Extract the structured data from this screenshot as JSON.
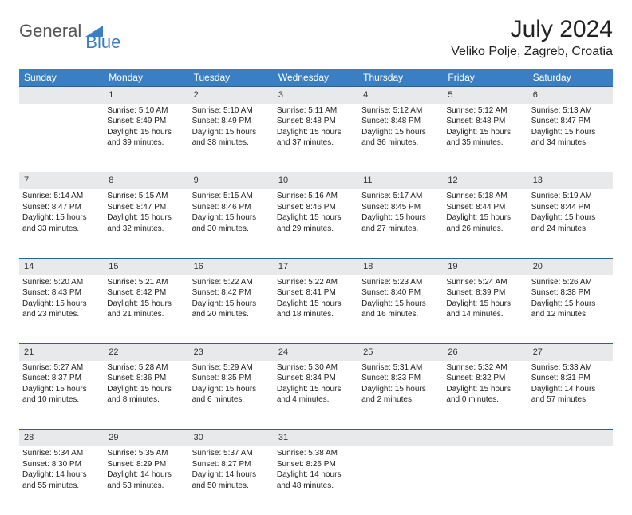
{
  "logo": {
    "word1": "General",
    "word2": "Blue",
    "color_general": "#555555",
    "color_blue": "#3a7fc4"
  },
  "title": {
    "month_year": "July 2024",
    "location": "Veliko Polje, Zagreb, Croatia"
  },
  "colors": {
    "header_bg": "#3a7fc4",
    "header_text": "#ffffff",
    "daynum_bg": "#e7e9eb",
    "rule": "#2b5f95",
    "text": "#222222"
  },
  "day_headers": [
    "Sunday",
    "Monday",
    "Tuesday",
    "Wednesday",
    "Thursday",
    "Friday",
    "Saturday"
  ],
  "weeks": [
    {
      "nums": [
        "",
        "1",
        "2",
        "3",
        "4",
        "5",
        "6"
      ],
      "cells": [
        [],
        [
          "Sunrise: 5:10 AM",
          "Sunset: 8:49 PM",
          "Daylight: 15 hours",
          "and 39 minutes."
        ],
        [
          "Sunrise: 5:10 AM",
          "Sunset: 8:49 PM",
          "Daylight: 15 hours",
          "and 38 minutes."
        ],
        [
          "Sunrise: 5:11 AM",
          "Sunset: 8:48 PM",
          "Daylight: 15 hours",
          "and 37 minutes."
        ],
        [
          "Sunrise: 5:12 AM",
          "Sunset: 8:48 PM",
          "Daylight: 15 hours",
          "and 36 minutes."
        ],
        [
          "Sunrise: 5:12 AM",
          "Sunset: 8:48 PM",
          "Daylight: 15 hours",
          "and 35 minutes."
        ],
        [
          "Sunrise: 5:13 AM",
          "Sunset: 8:47 PM",
          "Daylight: 15 hours",
          "and 34 minutes."
        ]
      ]
    },
    {
      "nums": [
        "7",
        "8",
        "9",
        "10",
        "11",
        "12",
        "13"
      ],
      "cells": [
        [
          "Sunrise: 5:14 AM",
          "Sunset: 8:47 PM",
          "Daylight: 15 hours",
          "and 33 minutes."
        ],
        [
          "Sunrise: 5:15 AM",
          "Sunset: 8:47 PM",
          "Daylight: 15 hours",
          "and 32 minutes."
        ],
        [
          "Sunrise: 5:15 AM",
          "Sunset: 8:46 PM",
          "Daylight: 15 hours",
          "and 30 minutes."
        ],
        [
          "Sunrise: 5:16 AM",
          "Sunset: 8:46 PM",
          "Daylight: 15 hours",
          "and 29 minutes."
        ],
        [
          "Sunrise: 5:17 AM",
          "Sunset: 8:45 PM",
          "Daylight: 15 hours",
          "and 27 minutes."
        ],
        [
          "Sunrise: 5:18 AM",
          "Sunset: 8:44 PM",
          "Daylight: 15 hours",
          "and 26 minutes."
        ],
        [
          "Sunrise: 5:19 AM",
          "Sunset: 8:44 PM",
          "Daylight: 15 hours",
          "and 24 minutes."
        ]
      ]
    },
    {
      "nums": [
        "14",
        "15",
        "16",
        "17",
        "18",
        "19",
        "20"
      ],
      "cells": [
        [
          "Sunrise: 5:20 AM",
          "Sunset: 8:43 PM",
          "Daylight: 15 hours",
          "and 23 minutes."
        ],
        [
          "Sunrise: 5:21 AM",
          "Sunset: 8:42 PM",
          "Daylight: 15 hours",
          "and 21 minutes."
        ],
        [
          "Sunrise: 5:22 AM",
          "Sunset: 8:42 PM",
          "Daylight: 15 hours",
          "and 20 minutes."
        ],
        [
          "Sunrise: 5:22 AM",
          "Sunset: 8:41 PM",
          "Daylight: 15 hours",
          "and 18 minutes."
        ],
        [
          "Sunrise: 5:23 AM",
          "Sunset: 8:40 PM",
          "Daylight: 15 hours",
          "and 16 minutes."
        ],
        [
          "Sunrise: 5:24 AM",
          "Sunset: 8:39 PM",
          "Daylight: 15 hours",
          "and 14 minutes."
        ],
        [
          "Sunrise: 5:26 AM",
          "Sunset: 8:38 PM",
          "Daylight: 15 hours",
          "and 12 minutes."
        ]
      ]
    },
    {
      "nums": [
        "21",
        "22",
        "23",
        "24",
        "25",
        "26",
        "27"
      ],
      "cells": [
        [
          "Sunrise: 5:27 AM",
          "Sunset: 8:37 PM",
          "Daylight: 15 hours",
          "and 10 minutes."
        ],
        [
          "Sunrise: 5:28 AM",
          "Sunset: 8:36 PM",
          "Daylight: 15 hours",
          "and 8 minutes."
        ],
        [
          "Sunrise: 5:29 AM",
          "Sunset: 8:35 PM",
          "Daylight: 15 hours",
          "and 6 minutes."
        ],
        [
          "Sunrise: 5:30 AM",
          "Sunset: 8:34 PM",
          "Daylight: 15 hours",
          "and 4 minutes."
        ],
        [
          "Sunrise: 5:31 AM",
          "Sunset: 8:33 PM",
          "Daylight: 15 hours",
          "and 2 minutes."
        ],
        [
          "Sunrise: 5:32 AM",
          "Sunset: 8:32 PM",
          "Daylight: 15 hours",
          "and 0 minutes."
        ],
        [
          "Sunrise: 5:33 AM",
          "Sunset: 8:31 PM",
          "Daylight: 14 hours",
          "and 57 minutes."
        ]
      ]
    },
    {
      "nums": [
        "28",
        "29",
        "30",
        "31",
        "",
        "",
        ""
      ],
      "cells": [
        [
          "Sunrise: 5:34 AM",
          "Sunset: 8:30 PM",
          "Daylight: 14 hours",
          "and 55 minutes."
        ],
        [
          "Sunrise: 5:35 AM",
          "Sunset: 8:29 PM",
          "Daylight: 14 hours",
          "and 53 minutes."
        ],
        [
          "Sunrise: 5:37 AM",
          "Sunset: 8:27 PM",
          "Daylight: 14 hours",
          "and 50 minutes."
        ],
        [
          "Sunrise: 5:38 AM",
          "Sunset: 8:26 PM",
          "Daylight: 14 hours",
          "and 48 minutes."
        ],
        [],
        [],
        []
      ]
    }
  ]
}
